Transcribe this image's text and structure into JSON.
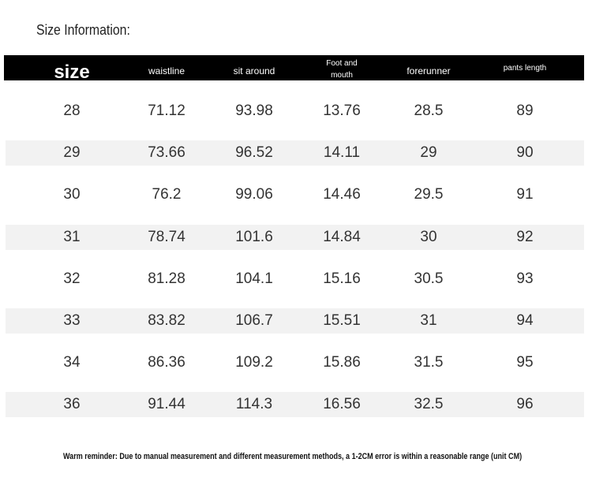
{
  "header": {
    "title": "Size Information:"
  },
  "table": {
    "columns": [
      "size",
      "waistline",
      "sit around",
      "Foot and mouth",
      "forerunner",
      "pants length"
    ],
    "rows": [
      [
        "28",
        "71.12",
        "93.98",
        "13.76",
        "28.5",
        "89"
      ],
      [
        "29",
        "73.66",
        "96.52",
        "14.11",
        "29",
        "90"
      ],
      [
        "30",
        "76.2",
        "99.06",
        "14.46",
        "29.5",
        "91"
      ],
      [
        "31",
        "78.74",
        "101.6",
        "14.84",
        "30",
        "92"
      ],
      [
        "32",
        "81.28",
        "104.1",
        "15.16",
        "30.5",
        "93"
      ],
      [
        "33",
        "83.82",
        "106.7",
        "15.51",
        "31",
        "94"
      ],
      [
        "34",
        "86.36",
        "109.2",
        "15.86",
        "31.5",
        "95"
      ],
      [
        "36",
        "91.44",
        "114.3",
        "16.56",
        "32.5",
        "96"
      ]
    ]
  },
  "footer": {
    "note": "Warm reminder: Due to manual measurement and different measurement methods, a 1-2CM error is within a reasonable range (unit CM)"
  }
}
